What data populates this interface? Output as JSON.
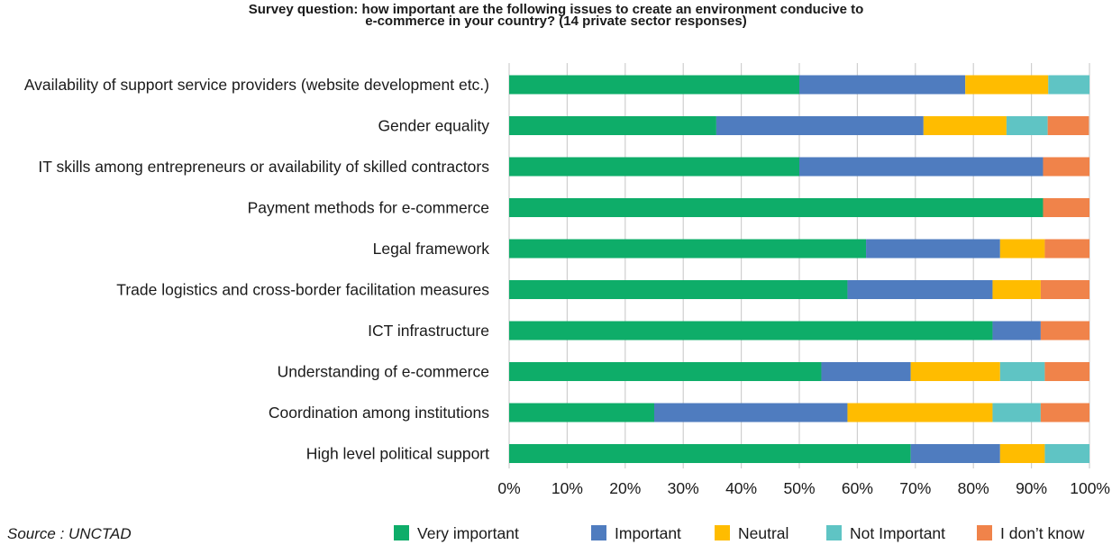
{
  "chart_data": {
    "type": "bar",
    "orientation": "horizontal",
    "stacked": true,
    "title": "Survey question: how important are the following issues to create an environment conducive to e-commerce in your country? (14 private sector responses)",
    "title_lines": [
      "Survey question: how important are the following issues to create an environment conducive to",
      "e-commerce in your country? (14 private sector responses)"
    ],
    "xlabel": "",
    "ylabel": "",
    "xlim": [
      0,
      100
    ],
    "x_ticks": [
      "0%",
      "10%",
      "20%",
      "30%",
      "40%",
      "50%",
      "60%",
      "70%",
      "80%",
      "90%",
      "100%"
    ],
    "grid": "vertical",
    "legend_position": "bottom-right",
    "categories": [
      "Availability of support service providers (website development etc.)",
      "Gender equality",
      "IT skills among entrepreneurs or availability of skilled contractors",
      "Payment methods for e-commerce",
      "Legal framework",
      "Trade logistics and cross-border facilitation measures",
      "ICT infrastructure",
      "Understanding of e-commerce",
      "Coordination among institutions",
      "High level political support"
    ],
    "series": [
      {
        "name": "Very important",
        "color": "#0ead69",
        "values": [
          50,
          35.7,
          50,
          92,
          61.5,
          58.3,
          83.3,
          53.8,
          25,
          69.2
        ]
      },
      {
        "name": "Important",
        "color": "#4f7cbf",
        "values": [
          28.6,
          35.7,
          42,
          0,
          23.1,
          25,
          8.3,
          15.4,
          33.3,
          15.4
        ]
      },
      {
        "name": "Neutral",
        "color": "#ffbc00",
        "values": [
          14.3,
          14.3,
          0,
          0,
          7.7,
          8.3,
          0,
          15.4,
          25,
          7.7
        ]
      },
      {
        "name": "Not Important",
        "color": "#5fc4c4",
        "values": [
          7.1,
          7.1,
          0,
          0,
          0,
          0,
          0,
          7.7,
          8.3,
          7.7
        ]
      },
      {
        "name": "I don’t know",
        "color": "#f0834a",
        "values": [
          0,
          7.1,
          8,
          8,
          7.7,
          8.4,
          8.4,
          7.7,
          8.4,
          0
        ]
      }
    ],
    "source": "Source : UNCTAD"
  }
}
